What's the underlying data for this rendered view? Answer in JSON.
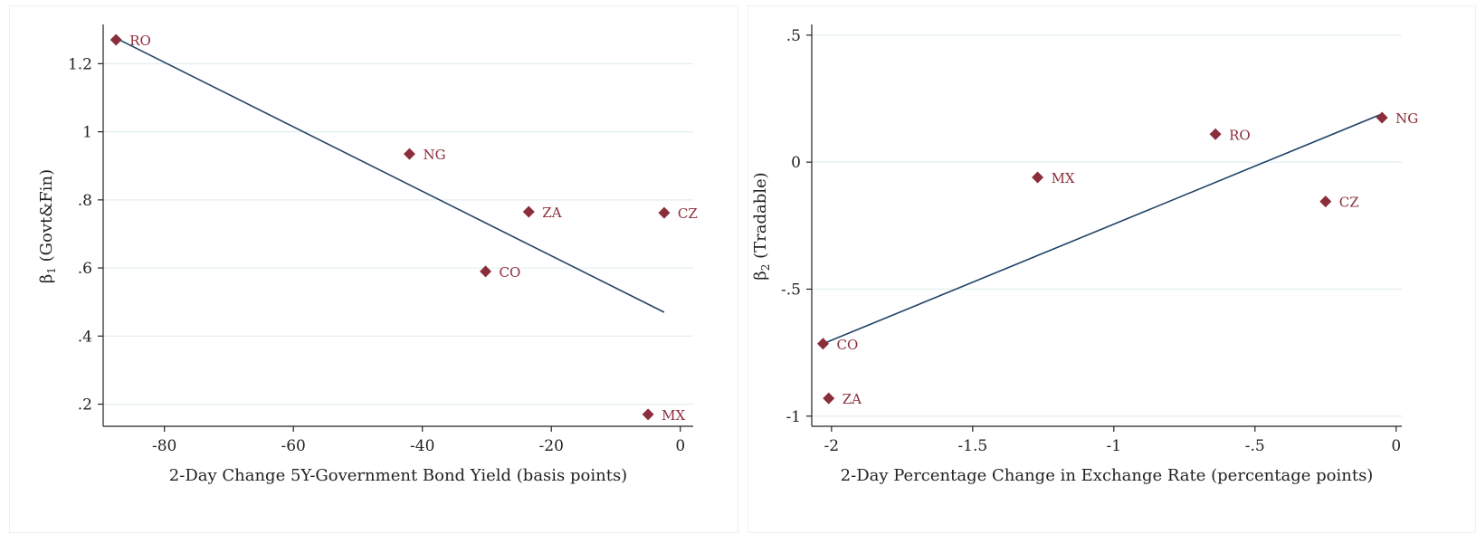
{
  "colors": {
    "points": "#8b2e3b",
    "fit_line": "#1f4368",
    "grid": "#e3eef0",
    "axis": "#222222"
  },
  "chart_data": [
    {
      "type": "scatter",
      "title": "",
      "xlabel": "2-Day Change 5Y-Government Bond Yield (basis points)",
      "ylabel_prefix": "β",
      "ylabel_sub": "1",
      "ylabel_rest": " (Govt&Fin)",
      "xlim": [
        -89.5,
        2
      ],
      "ylim": [
        0.135,
        1.31
      ],
      "x_ticks": [
        -80,
        -60,
        -40,
        -20,
        0
      ],
      "x_tick_labels": [
        "-80",
        "-60",
        "-40",
        "-20",
        "0"
      ],
      "y_ticks": [
        0.2,
        0.4,
        0.6,
        0.8,
        1.0,
        1.2
      ],
      "y_tick_labels": [
        ".2",
        ".4",
        ".6",
        ".8",
        "1",
        "1.2"
      ],
      "grid": true,
      "points": [
        {
          "label": "RO",
          "x": -87.5,
          "y": 1.27
        },
        {
          "label": "NG",
          "x": -42.0,
          "y": 0.935
        },
        {
          "label": "ZA",
          "x": -23.5,
          "y": 0.765
        },
        {
          "label": "CZ",
          "x": -2.5,
          "y": 0.762
        },
        {
          "label": "CO",
          "x": -30.2,
          "y": 0.59
        },
        {
          "label": "MX",
          "x": -5.0,
          "y": 0.17
        }
      ],
      "fit_line": {
        "x": [
          -87.5,
          -2.5
        ],
        "y": [
          1.275,
          0.47
        ]
      }
    },
    {
      "type": "scatter",
      "title": "",
      "xlabel": "2-Day Percentage Change in Exchange Rate (percentage points)",
      "ylabel_prefix": "β",
      "ylabel_sub": "2",
      "ylabel_rest": " (Tradable)",
      "xlim": [
        -2.07,
        0.02
      ],
      "ylim": [
        -1.04,
        0.535
      ],
      "x_ticks": [
        -2,
        -1.5,
        -1,
        -0.5,
        0
      ],
      "x_tick_labels": [
        "-2",
        "-1.5",
        "-1",
        "-.5",
        "0"
      ],
      "y_ticks": [
        -1,
        -0.5,
        0,
        0.5
      ],
      "y_tick_labels": [
        "-1",
        "-.5",
        "0",
        ".5"
      ],
      "grid": true,
      "points": [
        {
          "label": "NG",
          "x": -0.05,
          "y": 0.175
        },
        {
          "label": "RO",
          "x": -0.64,
          "y": 0.11
        },
        {
          "label": "MX",
          "x": -1.27,
          "y": -0.06
        },
        {
          "label": "CZ",
          "x": -0.25,
          "y": -0.155
        },
        {
          "label": "CO",
          "x": -2.03,
          "y": -0.715
        },
        {
          "label": "ZA",
          "x": -2.01,
          "y": -0.93
        }
      ],
      "fit_line": {
        "x": [
          -2.03,
          -0.05
        ],
        "y": [
          -0.715,
          0.19
        ]
      }
    }
  ]
}
